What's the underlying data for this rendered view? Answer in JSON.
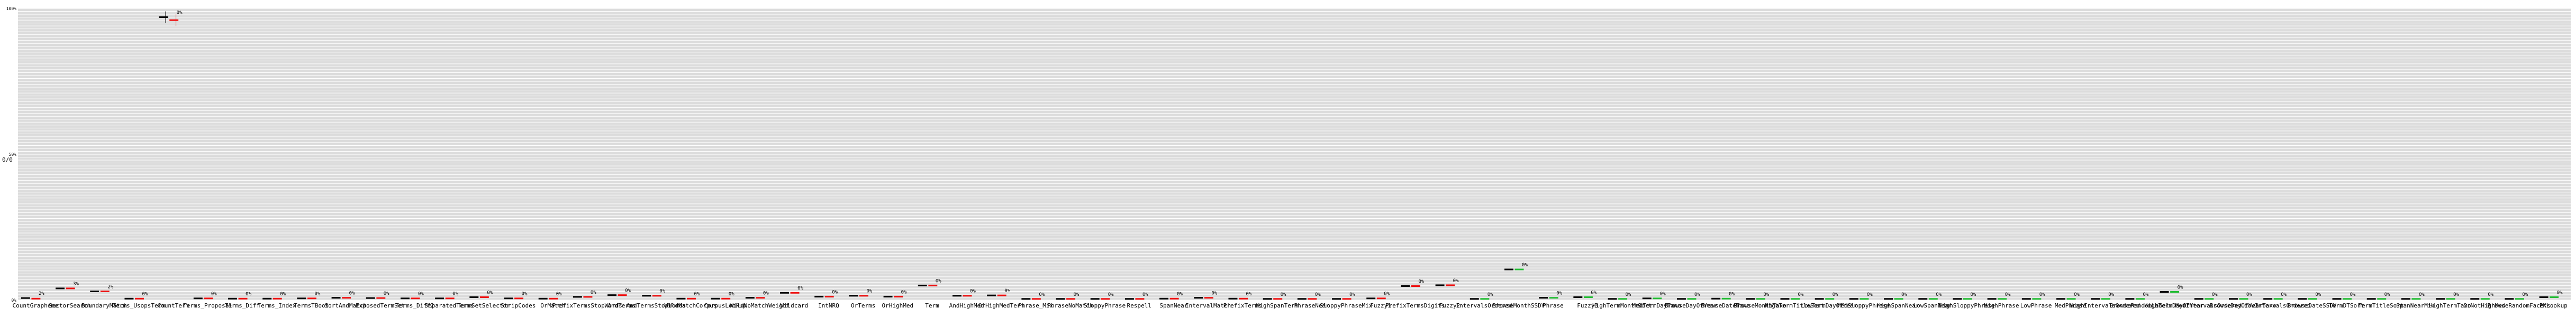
{
  "chart_data": {
    "type": "scatter",
    "title": "",
    "xlabel": "",
    "ylabel": "0/0",
    "grid": true,
    "legend": "none",
    "ylim": [
      0,
      100
    ],
    "colors": {
      "plot_background": "#dcdcdc",
      "grid": "#ffffff",
      "mark_a": "#000000",
      "mark_b": "#ee1111",
      "mark_c": "#22bb33"
    },
    "x": [
      "CountGrapheme",
      "SectorSearch",
      "BoundaryMatch",
      "Terms_UsopsTerm",
      "CountTerm",
      "Terms_Proposal",
      "Terms_Diff",
      "Terms_Index",
      "TermsTBoot",
      "SortAndMatch",
      "ExposedTermSet",
      "Terms_Diff2",
      "SeparatedTerms",
      "TermSetSelector",
      "StripCodes",
      "OrMatch",
      "PrefixTermsStopWords",
      "AndTerms",
      "AndTermsStopWords",
      "WildMatchCorpus",
      "CorpusLookup",
      "WildNoMatchWeight",
      "Wildcard",
      "IntNRQ",
      "OrTerms",
      "OrHighMed",
      "Term",
      "AndHighMed",
      "OrHighMedTerm",
      "Phrase_Mix",
      "PhraseNoMatch",
      "SloppyPhrase",
      "Respell",
      "SpanNear",
      "IntervalMatch",
      "PrefixTerms",
      "HighSpanTerm",
      "PhraseNear",
      "SloppyPhraseMix",
      "Fuzzy1",
      "PrefixTermsDigits",
      "Fuzzy2",
      "IntervalsOrdered",
      "BrowseMonthSSDV",
      "Phrase",
      "Fuzzy3",
      "HighTermMonthSort",
      "MedTermDayTaxo",
      "BrowseDayOfYear",
      "BrowseDateTaxo",
      "BrowseMonthTaxo",
      "HighTermTitleSort",
      "LowTermDayOfYear",
      "MedSloppyPhrase",
      "HighSpanNear",
      "LowSpanNear",
      "HighSloppyPhrase",
      "HighPhrase",
      "LowPhrase",
      "MedPhrase",
      "HighIntervalsOrdered",
      "BrowseRandomLabel",
      "HighTermDayOfYear",
      "MedIntervalsOrdered",
      "BrowseDayOfYearTaxo",
      "LowIntervalsOrdered",
      "BrowseDateSSDV",
      "TermDTSort",
      "TermTitleSort",
      "SpanNearMix",
      "HighTermTaxo",
      "OrNotHighMed",
      "BrowseRandomFacets",
      "PKLookup"
    ],
    "x_tick_labels": [
      "CountGrapheme",
      "SectorSearch",
      "BoundaryMatch",
      "Terms_UsopsTerm",
      "CountTerm",
      "Terms_Proposal",
      "Terms_Diff",
      "Terms_Index",
      "TermsTBoot",
      "SortAndMatch",
      "ExposedTermSet",
      "Terms_Diff2",
      "SeparatedTerms",
      "TermSetSelector",
      "StripCodes",
      "OrMatch",
      "PrefixTermsStopWords",
      "AndTerms",
      "AndTermsStopWords",
      "WildMatchCorpus",
      "CorpusLookup",
      "WildNoMatchWeight",
      "Wildcard",
      "IntNRQ",
      "OrTerms",
      "OrHighMed",
      "Term",
      "AndHighMed",
      "OrHighMedTerm",
      "Phrase_Mix",
      "PhraseNoMatch",
      "SloppyPhrase",
      "Respell",
      "SpanNear",
      "IntervalMatch",
      "PrefixTerms",
      "HighSpanTerm",
      "PhraseNear",
      "SloppyPhraseMix",
      "Fuzzy1",
      "PrefixTermsDigits",
      "Fuzzy2",
      "IntervalsOrdered",
      "BrowseMonthSSDV",
      "Phrase",
      "Fuzzy3",
      "HighTermMonthSort",
      "MedTermDayTaxo",
      "BrowseDayOfYear",
      "BrowseDateTaxo",
      "BrowseMonthTaxo",
      "HighTermTitleSort",
      "LowTermDayOfYear",
      "MedSloppyPhrase",
      "HighSpanNear",
      "LowSpanNear",
      "HighSloppyPhrase",
      "HighPhrase",
      "LowPhrase",
      "MedPhrase",
      "HighIntervalsOrdered",
      "BrowseRandomLabel",
      "HighTermDayOfYear",
      "MedIntervalsOrdered",
      "BrowseDayOfYearTaxo",
      "LowIntervalsOrdered",
      "BrowseDateSSDV",
      "TermDTSort",
      "TermTitleSort",
      "SpanNearMix",
      "HighTermTaxo",
      "OrNotHighMed",
      "BrowseRandomFacets",
      "PKLookup"
    ],
    "y_tick_labels": [
      "100%",
      "",
      "",
      "",
      "",
      "",
      "",
      "",
      "",
      "",
      "50%",
      "",
      "",
      "",
      "",
      "",
      "",
      "",
      "",
      "",
      "0%"
    ],
    "annotation_values": [
      2,
      3,
      2,
      0,
      0,
      0,
      0,
      0,
      0,
      0,
      0,
      0,
      0,
      0,
      0,
      0,
      0,
      0,
      0,
      0,
      0,
      0,
      0,
      0,
      0,
      0,
      0,
      0,
      0,
      0,
      0,
      0,
      0,
      0,
      0,
      0,
      0,
      0,
      0,
      0,
      0,
      0,
      0,
      0,
      0,
      0,
      0,
      0,
      0,
      0,
      0,
      0,
      0,
      0,
      0,
      0,
      0,
      0,
      0,
      0,
      0,
      0,
      0,
      0,
      0,
      0,
      0,
      0,
      0,
      0,
      0,
      0,
      0,
      0
    ],
    "annotation_labels": [
      "2%",
      "3%",
      "2%",
      "0%",
      "0%",
      "0%",
      "0%",
      "0%",
      "0%",
      "0%",
      "0%",
      "0%",
      "0%",
      "0%",
      "0%",
      "0%",
      "0%",
      "0%",
      "0%",
      "0%",
      "0%",
      "0%",
      "0%",
      "0%",
      "0%",
      "0%",
      "0%",
      "0%",
      "0%",
      "0%",
      "0%",
      "0%",
      "0%",
      "0%",
      "0%",
      "0%",
      "0%",
      "0%",
      "0%",
      "0%",
      "0%",
      "0%",
      "0%",
      "0%",
      "0%",
      "0%",
      "0%",
      "0%",
      "0%",
      "0%",
      "0%",
      "0%",
      "0%",
      "0%",
      "0%",
      "0%",
      "0%",
      "0%",
      "0%",
      "0%",
      "0%",
      "0%",
      "0%",
      "0%",
      "0%",
      "0%",
      "0%",
      "0%",
      "0%",
      "0%",
      "0%",
      "0%",
      "0%",
      "0%"
    ],
    "series": [
      {
        "color": "#000000",
        "values": [
          0.7,
          4.0,
          3.0,
          0.5,
          97,
          0.6,
          0.5,
          0.5,
          0.6,
          0.8,
          0.7,
          0.6,
          0.6,
          1.0,
          0.6,
          0.5,
          1.1,
          1.7,
          1.5,
          0.5,
          0.5,
          0.8,
          2.5,
          1.2,
          1.5,
          1.2,
          5.0,
          1.5,
          1.6,
          0.4,
          0.4,
          0.4,
          0.4,
          0.5,
          0.8,
          0.5,
          0.4,
          0.4,
          0.4,
          0.6,
          4.8,
          5.1,
          0.4,
          10.5,
          0.8,
          1.0,
          0.4,
          0.6,
          0.4,
          0.5,
          0.4,
          0.4,
          0.4,
          0.4,
          0.4,
          0.4,
          0.4,
          0.4,
          0.4,
          0.4,
          0.4,
          0.4,
          2.8,
          0.4,
          0.4,
          0.4,
          0.4,
          0.4,
          0.4,
          0.4,
          0.4,
          0.4,
          0.4,
          1.0
        ]
      },
      {
        "color": "#ee1111",
        "values": [
          0.5,
          4.0,
          3.0,
          0.5,
          96,
          0.6,
          0.5,
          0.5,
          0.6,
          0.8,
          0.7,
          0.6,
          0.6,
          1.0,
          0.6,
          0.5,
          1.1,
          1.7,
          1.5,
          0.5,
          0.5,
          0.8,
          2.5,
          1.2,
          1.5,
          1.2,
          5.0,
          1.5,
          1.6,
          0.4,
          0.4,
          0.4,
          0.4,
          0.5,
          0.8,
          0.5,
          0.4,
          0.4,
          0.4,
          0.6,
          4.8,
          5.1,
          null,
          null,
          null,
          null,
          null,
          null,
          null,
          null,
          null,
          null,
          null,
          null,
          null,
          null,
          null,
          null,
          null,
          null,
          null,
          null,
          null,
          null,
          null,
          null,
          null,
          null,
          null,
          null,
          null,
          null,
          null,
          null
        ]
      },
      {
        "color": "#22bb33",
        "values": [
          null,
          null,
          null,
          null,
          null,
          null,
          null,
          null,
          null,
          null,
          null,
          null,
          null,
          null,
          null,
          null,
          null,
          null,
          null,
          null,
          null,
          null,
          null,
          null,
          null,
          null,
          null,
          null,
          null,
          null,
          null,
          null,
          null,
          null,
          null,
          null,
          null,
          null,
          null,
          null,
          null,
          null,
          0.4,
          10.5,
          0.8,
          1.0,
          0.4,
          0.6,
          0.4,
          0.5,
          0.4,
          0.4,
          0.4,
          0.4,
          0.4,
          0.4,
          0.4,
          0.4,
          0.4,
          0.4,
          0.4,
          0.4,
          2.8,
          0.4,
          0.4,
          0.4,
          0.4,
          0.4,
          0.4,
          0.4,
          0.4,
          0.4,
          0.4,
          1.0
        ]
      }
    ]
  }
}
